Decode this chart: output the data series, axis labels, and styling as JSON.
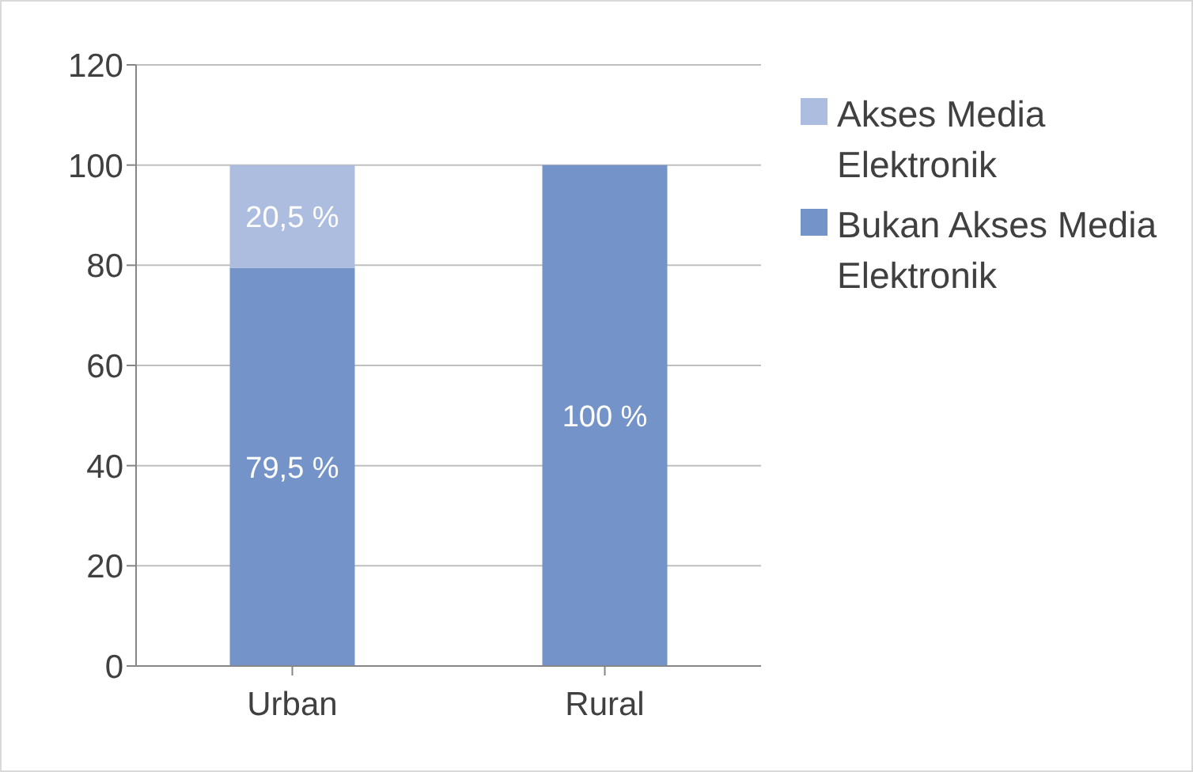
{
  "chart_data": {
    "type": "bar",
    "stacked": true,
    "categories": [
      "Urban",
      "Rural"
    ],
    "series": [
      {
        "name": "Bukan Akses Media Elektronik",
        "color": "#7494c9",
        "values": [
          79.5,
          100
        ],
        "value_labels": [
          "79,5 %",
          "100 %"
        ]
      },
      {
        "name": "Akses Media Elektronik",
        "color": "#adbde0",
        "values": [
          20.5,
          0
        ],
        "value_labels": [
          "20,5 %",
          null
        ]
      }
    ],
    "ylim": [
      0,
      120
    ],
    "yticks": [
      0,
      20,
      40,
      60,
      80,
      100,
      120
    ],
    "grid": "y",
    "legend": "right"
  }
}
